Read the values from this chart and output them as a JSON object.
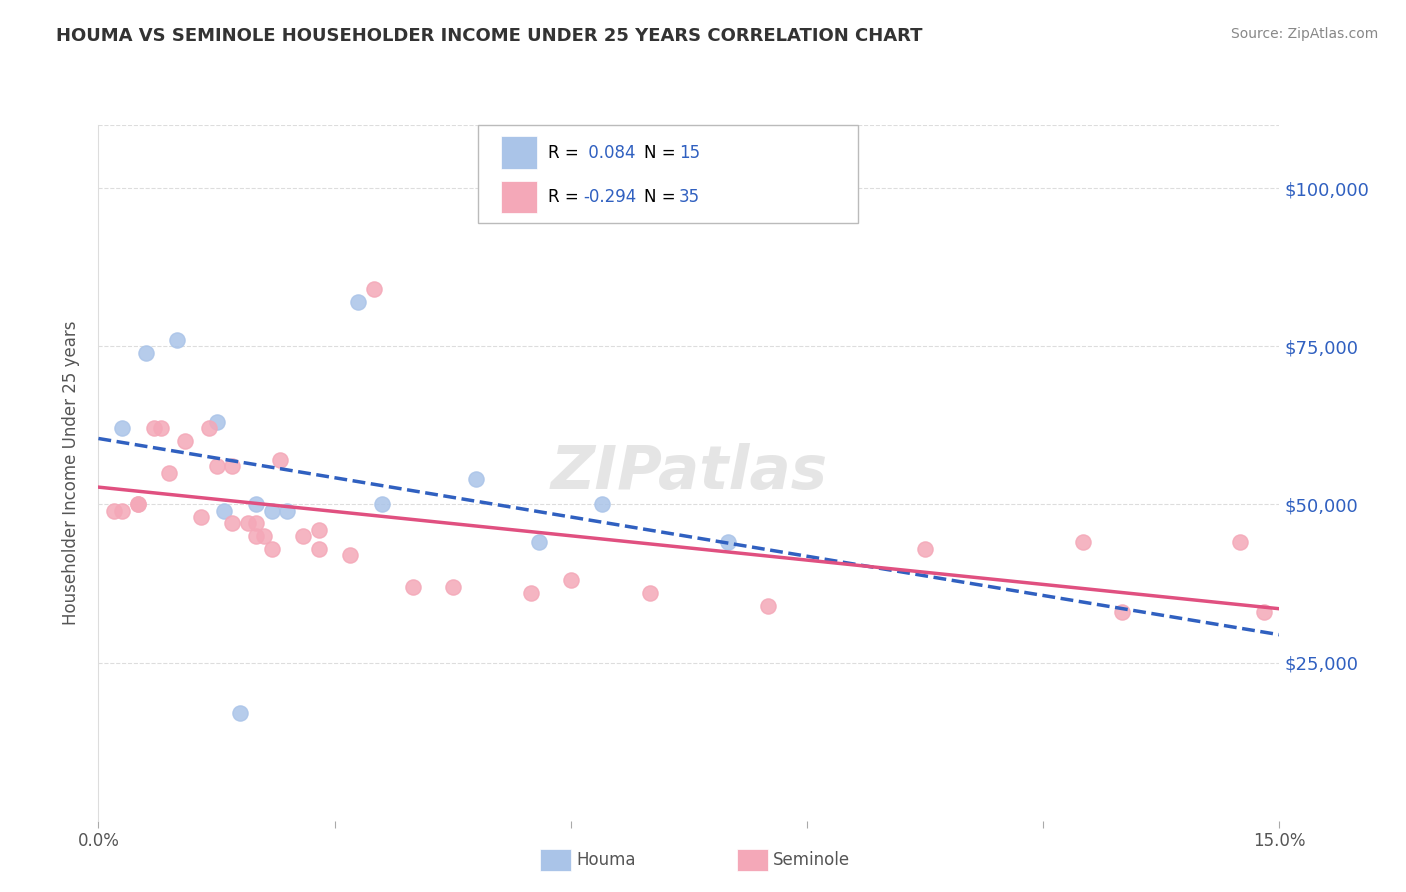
{
  "title": "HOUMA VS SEMINOLE HOUSEHOLDER INCOME UNDER 25 YEARS CORRELATION CHART",
  "source": "Source: ZipAtlas.com",
  "ylabel": "Householder Income Under 25 years",
  "xlim": [
    0.0,
    15.0
  ],
  "ylim": [
    0,
    110000
  ],
  "yticks": [
    25000,
    50000,
    75000,
    100000
  ],
  "ytick_labels": [
    "$25,000",
    "$50,000",
    "$75,000",
    "$100,000"
  ],
  "watermark": "ZIPatlas",
  "houma_R": 0.084,
  "houma_N": 15,
  "seminole_R": -0.294,
  "seminole_N": 35,
  "houma_color": "#aac4e8",
  "seminole_color": "#f4a8b8",
  "houma_line_color": "#3060c0",
  "seminole_line_color": "#e05080",
  "houma_points": [
    [
      0.3,
      62000
    ],
    [
      0.6,
      74000
    ],
    [
      1.0,
      76000
    ],
    [
      1.5,
      63000
    ],
    [
      1.6,
      49000
    ],
    [
      2.0,
      50000
    ],
    [
      2.2,
      49000
    ],
    [
      2.4,
      49000
    ],
    [
      3.3,
      82000
    ],
    [
      3.6,
      50000
    ],
    [
      4.8,
      54000
    ],
    [
      5.6,
      44000
    ],
    [
      6.4,
      50000
    ],
    [
      8.0,
      44000
    ],
    [
      1.8,
      17000
    ]
  ],
  "seminole_points": [
    [
      0.2,
      49000
    ],
    [
      0.3,
      49000
    ],
    [
      0.5,
      50000
    ],
    [
      0.5,
      50000
    ],
    [
      0.7,
      62000
    ],
    [
      0.8,
      62000
    ],
    [
      0.9,
      55000
    ],
    [
      1.1,
      60000
    ],
    [
      1.3,
      48000
    ],
    [
      1.4,
      62000
    ],
    [
      1.5,
      56000
    ],
    [
      1.7,
      56000
    ],
    [
      1.7,
      47000
    ],
    [
      1.9,
      47000
    ],
    [
      2.0,
      47000
    ],
    [
      2.0,
      45000
    ],
    [
      2.1,
      45000
    ],
    [
      2.2,
      43000
    ],
    [
      2.3,
      57000
    ],
    [
      2.6,
      45000
    ],
    [
      2.8,
      46000
    ],
    [
      2.8,
      43000
    ],
    [
      3.2,
      42000
    ],
    [
      3.5,
      84000
    ],
    [
      4.0,
      37000
    ],
    [
      4.5,
      37000
    ],
    [
      5.5,
      36000
    ],
    [
      6.0,
      38000
    ],
    [
      7.0,
      36000
    ],
    [
      8.5,
      34000
    ],
    [
      10.5,
      43000
    ],
    [
      12.5,
      44000
    ],
    [
      13.0,
      33000
    ],
    [
      14.5,
      44000
    ],
    [
      14.8,
      33000
    ]
  ],
  "background_color": "#ffffff",
  "grid_color": "#dddddd",
  "title_color": "#333333",
  "axis_label_color": "#3060c0",
  "stat_color": "#3060c0"
}
